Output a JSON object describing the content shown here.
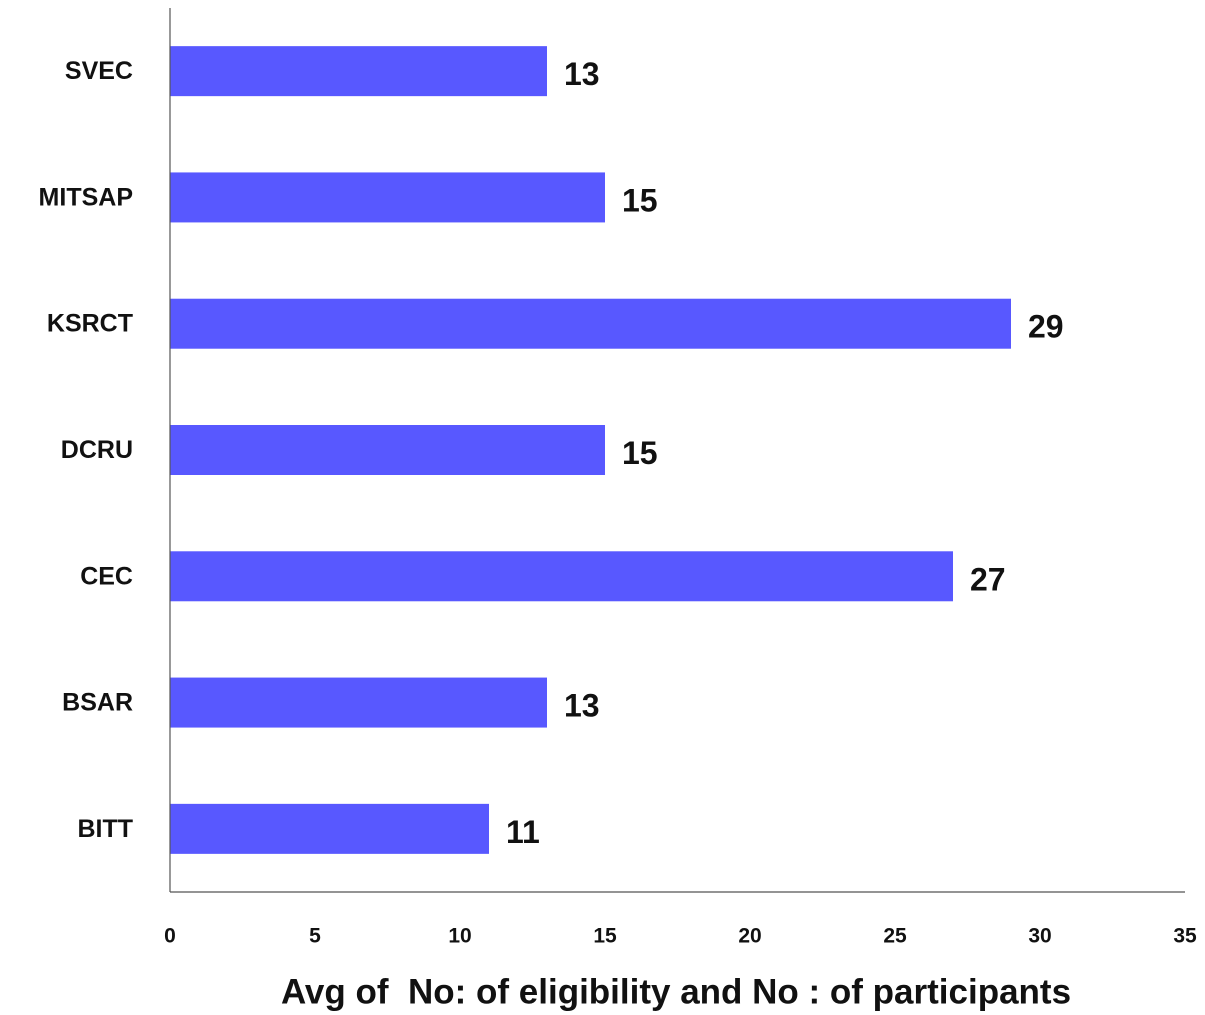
{
  "chart_data": {
    "type": "bar",
    "orientation": "horizontal",
    "categories": [
      "BITT",
      "BSAR",
      "CEC",
      "DCRU",
      "KSRCT",
      "MITSAP",
      "SVEC"
    ],
    "values": [
      11,
      13,
      27,
      15,
      29,
      15,
      13
    ],
    "data_labels": [
      "11",
      "13",
      "27",
      "15",
      "29",
      "15",
      "13"
    ],
    "title": "",
    "xlabel": "Avg of  No: of eligibility and No : of participants",
    "ylabel": "",
    "xlim": [
      0,
      35
    ],
    "x_ticks": [
      0,
      5,
      10,
      15,
      20,
      25,
      30,
      35
    ],
    "x_tick_labels": [
      "0",
      "5",
      "10",
      "15",
      "20",
      "25",
      "30",
      "35"
    ],
    "grid": false,
    "legend": "none",
    "bar_color": "#5858FF"
  }
}
